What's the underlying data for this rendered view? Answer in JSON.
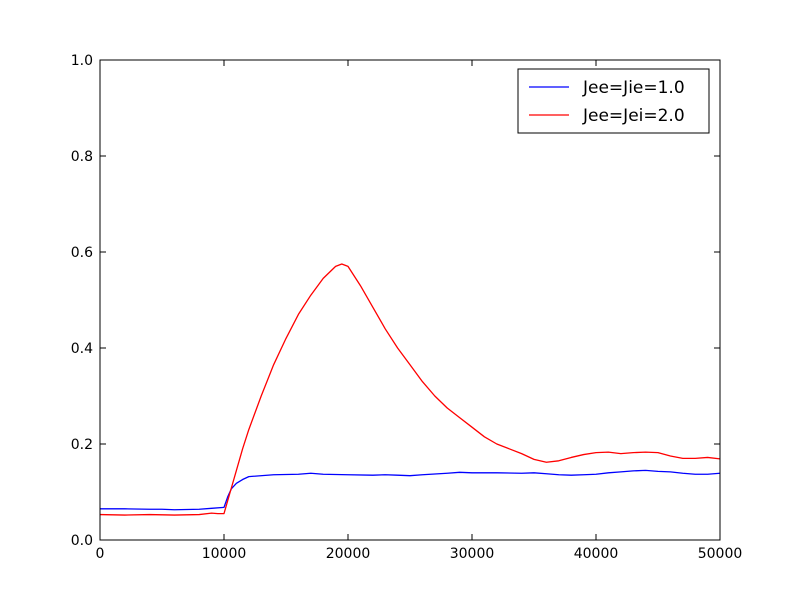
{
  "chart_data": {
    "type": "line",
    "title": "",
    "xlabel": "",
    "ylabel": "",
    "xlim": [
      0,
      50000
    ],
    "ylim": [
      0.0,
      1.0
    ],
    "grid": false,
    "legend_position": "top-right",
    "x_ticks": [
      "0",
      "10000",
      "20000",
      "30000",
      "40000",
      "50000"
    ],
    "y_ticks": [
      "0.0",
      "0.2",
      "0.4",
      "0.6",
      "0.8",
      "1.0"
    ],
    "series": [
      {
        "name": "Jee=Jie=1.0",
        "color": "#0000ff",
        "x": [
          0,
          2000,
          4000,
          5000,
          6000,
          8000,
          9000,
          10000,
          10300,
          10600,
          11000,
          11500,
          12000,
          14000,
          16000,
          17000,
          18000,
          20000,
          22000,
          23000,
          24000,
          25000,
          26000,
          28000,
          29000,
          30000,
          32000,
          34000,
          35000,
          36000,
          37000,
          38000,
          39000,
          40000,
          41000,
          42000,
          43000,
          44000,
          45000,
          46000,
          47000,
          48000,
          49000,
          50000
        ],
        "y": [
          0.065,
          0.065,
          0.064,
          0.064,
          0.063,
          0.064,
          0.066,
          0.068,
          0.09,
          0.107,
          0.118,
          0.126,
          0.132,
          0.136,
          0.137,
          0.139,
          0.137,
          0.136,
          0.135,
          0.136,
          0.135,
          0.134,
          0.136,
          0.139,
          0.141,
          0.14,
          0.14,
          0.139,
          0.14,
          0.138,
          0.136,
          0.135,
          0.136,
          0.137,
          0.14,
          0.142,
          0.144,
          0.145,
          0.143,
          0.142,
          0.139,
          0.137,
          0.137,
          0.139
        ]
      },
      {
        "name": "Jee=Jei=2.0",
        "color": "#ff0000",
        "x": [
          0,
          2000,
          4000,
          6000,
          8000,
          9000,
          9500,
          10000,
          10500,
          11000,
          11500,
          12000,
          13000,
          14000,
          15000,
          16000,
          17000,
          18000,
          19000,
          19500,
          20000,
          21000,
          22000,
          23000,
          24000,
          25000,
          26000,
          27000,
          28000,
          29000,
          30000,
          31000,
          32000,
          33000,
          34000,
          35000,
          36000,
          37000,
          38000,
          39000,
          40000,
          41000,
          42000,
          43000,
          44000,
          45000,
          46000,
          47000,
          48000,
          49000,
          50000
        ],
        "y": [
          0.053,
          0.052,
          0.053,
          0.052,
          0.053,
          0.056,
          0.055,
          0.055,
          0.1,
          0.145,
          0.19,
          0.23,
          0.3,
          0.365,
          0.42,
          0.47,
          0.51,
          0.545,
          0.57,
          0.575,
          0.57,
          0.53,
          0.485,
          0.44,
          0.4,
          0.365,
          0.33,
          0.3,
          0.275,
          0.255,
          0.235,
          0.215,
          0.2,
          0.19,
          0.18,
          0.168,
          0.162,
          0.165,
          0.172,
          0.178,
          0.182,
          0.183,
          0.18,
          0.182,
          0.183,
          0.182,
          0.175,
          0.17,
          0.17,
          0.172,
          0.169
        ]
      }
    ]
  }
}
